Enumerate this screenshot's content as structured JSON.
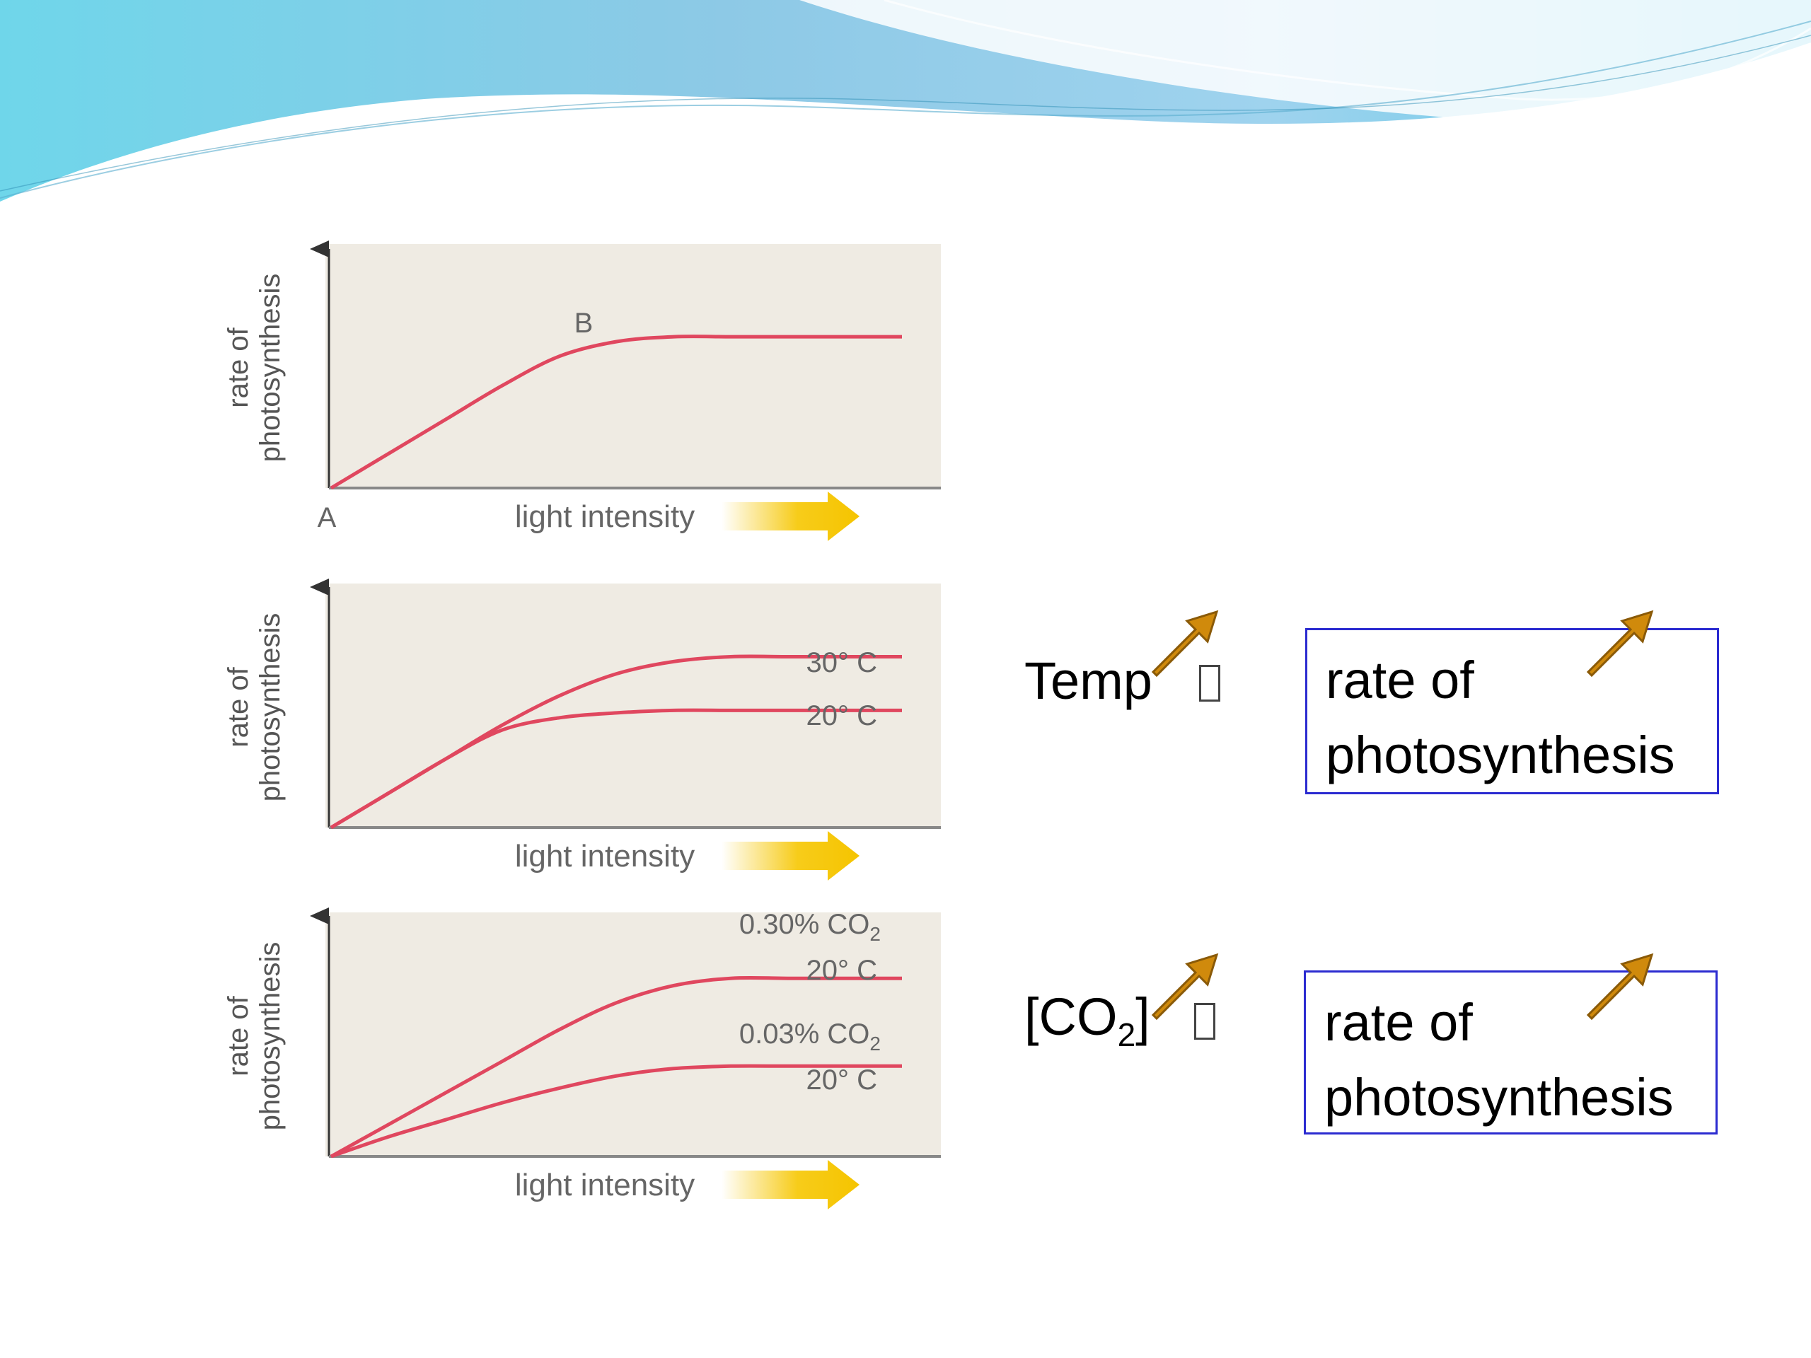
{
  "colors": {
    "curve": "#e0475f",
    "plot_background": "#efebe3",
    "box_border": "#2b2bd0",
    "up_arrow": "#d08a0c",
    "light_arrow": "#f5c400",
    "wave_top": "#7fd3e8"
  },
  "chart_data": [
    {
      "type": "line",
      "ylabel": "rate of photosynthesis",
      "xlabel": "light intensity",
      "annotations": [
        "A",
        "B"
      ],
      "x": [
        0,
        10,
        20,
        30,
        40,
        50,
        60,
        70,
        80,
        90,
        100
      ],
      "series": [
        {
          "values": [
            0,
            14,
            28,
            42,
            54,
            60,
            62,
            62,
            62,
            62,
            62
          ]
        }
      ],
      "ylim": [
        0,
        100
      ],
      "grid": false
    },
    {
      "type": "line",
      "ylabel": "rate of photosynthesis",
      "xlabel": "light intensity",
      "x": [
        0,
        10,
        20,
        30,
        40,
        50,
        60,
        70,
        80,
        90,
        100
      ],
      "series": [
        {
          "name": "30° C",
          "values": [
            0,
            14,
            28,
            42,
            54,
            63,
            68,
            70,
            70,
            70,
            70
          ]
        },
        {
          "name": "20° C",
          "values": [
            0,
            14,
            28,
            40,
            45,
            47,
            48,
            48,
            48,
            48,
            48
          ]
        }
      ],
      "ylim": [
        0,
        100
      ],
      "grid": false
    },
    {
      "type": "line",
      "ylabel": "rate of photosynthesis",
      "xlabel": "light intensity",
      "x": [
        0,
        10,
        20,
        30,
        40,
        50,
        60,
        70,
        80,
        90,
        100
      ],
      "series": [
        {
          "name": "0.30% CO2 20° C",
          "values": [
            0,
            13,
            26,
            39,
            52,
            63,
            70,
            73,
            73,
            73,
            73
          ]
        },
        {
          "name": "0.03% CO2 20° C",
          "values": [
            0,
            8,
            15,
            22,
            28,
            33,
            36,
            37,
            37,
            37,
            37
          ]
        }
      ],
      "ylim": [
        0,
        100
      ],
      "grid": false
    }
  ],
  "charts": {
    "c1": {
      "ylabel1": "rate of",
      "ylabel2": "photosynthesis",
      "xlabel": "light intensity",
      "point_a": "A",
      "point_b": "B"
    },
    "c2": {
      "ylabel1": "rate of",
      "ylabel2": "photosynthesis",
      "xlabel": "light intensity",
      "s1": "30° C",
      "s2": "20° C"
    },
    "c3": {
      "ylabel1": "rate of",
      "ylabel2": "photosynthesis",
      "xlabel": "light intensity",
      "s1a": "0.30% CO",
      "s1a_sub": "2",
      "s1b": "20° C",
      "s2a": "0.03% CO",
      "s2a_sub": "2",
      "s2b": "20° C"
    }
  },
  "relations": [
    {
      "factor": "Temp",
      "result_line1": "rate of",
      "result_line2": "photosynthesis"
    },
    {
      "factor_open": "[CO",
      "factor_sub": "2",
      "factor_close": "]",
      "result_line1": "rate of",
      "result_line2": "photosynthesis"
    }
  ],
  "icons": [
    "up-arrow-icon",
    "light-arrow-icon",
    "placeholder-glyph"
  ]
}
